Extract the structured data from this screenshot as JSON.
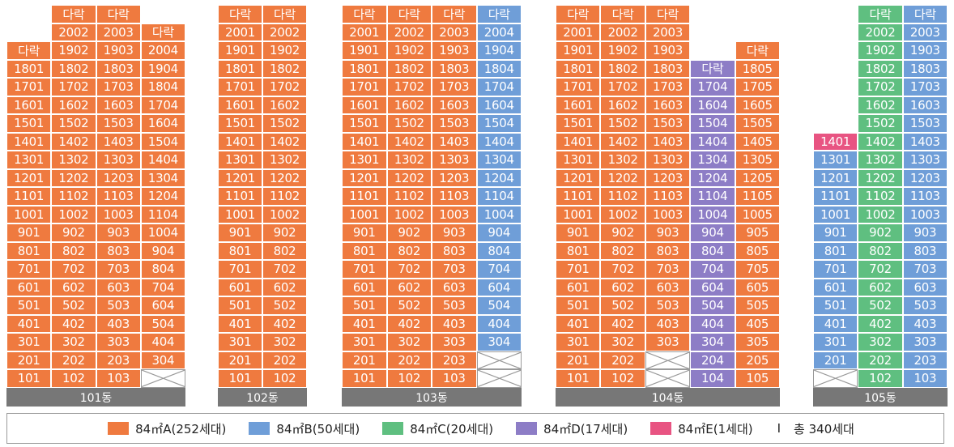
{
  "colors": {
    "A": "#ef7a3f",
    "B": "#6f9ed8",
    "C": "#5fbf80",
    "D": "#8d7dc6",
    "E": "#e85482"
  },
  "roof_label": "다락",
  "buildings": [
    {
      "name": "101동",
      "columns": [
        {
          "units": [
            "101",
            "201",
            "301",
            "401",
            "501",
            "601",
            "701",
            "801",
            "901",
            "1001",
            "1101",
            "1201",
            "1301",
            "1401",
            "1501",
            "1601",
            "1701",
            "1801",
            "다락"
          ],
          "types": [
            "A"
          ]
        },
        {
          "units": [
            "102",
            "202",
            "302",
            "402",
            "502",
            "602",
            "702",
            "802",
            "902",
            "1002",
            "1102",
            "1202",
            "1302",
            "1402",
            "1502",
            "1602",
            "1702",
            "1802",
            "1902",
            "2002",
            "다락"
          ],
          "types": [
            "A"
          ]
        },
        {
          "units": [
            "103",
            "203",
            "303",
            "403",
            "503",
            "603",
            "703",
            "803",
            "903",
            "1003",
            "1103",
            "1203",
            "1303",
            "1403",
            "1503",
            "1603",
            "1703",
            "1803",
            "1903",
            "2003",
            "다락"
          ],
          "types": [
            "A"
          ]
        },
        {
          "units": [
            "",
            "304",
            "404",
            "504",
            "604",
            "704",
            "804",
            "904",
            "1004",
            "1104",
            "1204",
            "1304",
            "1404",
            "1504",
            "1604",
            "1704",
            "1804",
            "1904",
            "2004",
            "다락"
          ],
          "types": [
            "A"
          ],
          "empty_bottom": 1
        }
      ]
    },
    {
      "name": "102동",
      "columns": [
        {
          "units": [
            "101",
            "201",
            "301",
            "401",
            "501",
            "601",
            "701",
            "801",
            "901",
            "1001",
            "1101",
            "1201",
            "1301",
            "1401",
            "1501",
            "1601",
            "1701",
            "1801",
            "1901",
            "2001",
            "다락"
          ],
          "types": [
            "A"
          ]
        },
        {
          "units": [
            "102",
            "202",
            "302",
            "402",
            "502",
            "602",
            "702",
            "802",
            "902",
            "1002",
            "1102",
            "1202",
            "1302",
            "1402",
            "1502",
            "1602",
            "1702",
            "1802",
            "1902",
            "2002",
            "다락"
          ],
          "types": [
            "A"
          ]
        }
      ]
    },
    {
      "name": "103동",
      "columns": [
        {
          "units": [
            "101",
            "201",
            "301",
            "401",
            "501",
            "601",
            "701",
            "801",
            "901",
            "1001",
            "1101",
            "1201",
            "1301",
            "1401",
            "1501",
            "1601",
            "1701",
            "1801",
            "1901",
            "2001",
            "다락"
          ],
          "types": [
            "A"
          ]
        },
        {
          "units": [
            "102",
            "202",
            "302",
            "402",
            "502",
            "602",
            "702",
            "802",
            "902",
            "1002",
            "1102",
            "1202",
            "1302",
            "1402",
            "1502",
            "1602",
            "1702",
            "1802",
            "1902",
            "2002",
            "다락"
          ],
          "types": [
            "A"
          ]
        },
        {
          "units": [
            "103",
            "203",
            "303",
            "403",
            "503",
            "603",
            "703",
            "803",
            "903",
            "1003",
            "1103",
            "1203",
            "1303",
            "1403",
            "1503",
            "1603",
            "1703",
            "1803",
            "1903",
            "2003",
            "다락"
          ],
          "types": [
            "A"
          ]
        },
        {
          "units": [
            "",
            "",
            "304",
            "404",
            "504",
            "604",
            "704",
            "804",
            "904",
            "1004",
            "1104",
            "1204",
            "1304",
            "1404",
            "1504",
            "1604",
            "1704",
            "1804",
            "1904",
            "2004",
            "다락"
          ],
          "types": [
            "B"
          ],
          "empty_bottom": 2
        }
      ]
    },
    {
      "name": "104동",
      "columns": [
        {
          "units": [
            "101",
            "201",
            "301",
            "401",
            "501",
            "601",
            "701",
            "801",
            "901",
            "1001",
            "1101",
            "1201",
            "1301",
            "1401",
            "1501",
            "1601",
            "1701",
            "1801",
            "1901",
            "2001",
            "다락"
          ],
          "types": [
            "A"
          ]
        },
        {
          "units": [
            "102",
            "202",
            "302",
            "402",
            "502",
            "602",
            "702",
            "802",
            "902",
            "1002",
            "1102",
            "1202",
            "1302",
            "1402",
            "1502",
            "1602",
            "1702",
            "1802",
            "1902",
            "2002",
            "다락"
          ],
          "types": [
            "A"
          ]
        },
        {
          "units": [
            "",
            "",
            "303",
            "403",
            "503",
            "603",
            "703",
            "803",
            "903",
            "1003",
            "1103",
            "1203",
            "1303",
            "1403",
            "1503",
            "1603",
            "1703",
            "1803",
            "1903",
            "2003",
            "다락"
          ],
          "types": [
            "A"
          ],
          "empty_bottom": 2
        },
        {
          "units": [
            "104",
            "204",
            "304",
            "404",
            "504",
            "604",
            "704",
            "804",
            "904",
            "1004",
            "1104",
            "1204",
            "1304",
            "1404",
            "1504",
            "1604",
            "1704",
            "다락"
          ],
          "types": [
            "D"
          ]
        },
        {
          "units": [
            "105",
            "205",
            "305",
            "405",
            "505",
            "605",
            "705",
            "805",
            "905",
            "1005",
            "1105",
            "1205",
            "1305",
            "1405",
            "1505",
            "1605",
            "1705",
            "1805",
            "다락"
          ],
          "types": [
            "A"
          ]
        }
      ]
    },
    {
      "name": "105동",
      "columns": [
        {
          "units": [
            "",
            "201",
            "301",
            "401",
            "501",
            "601",
            "701",
            "801",
            "901",
            "1001",
            "1101",
            "1201",
            "1301",
            "1401"
          ],
          "types": [
            "B"
          ],
          "empty_bottom": 1,
          "top_type": "E"
        },
        {
          "units": [
            "102",
            "202",
            "302",
            "402",
            "502",
            "602",
            "702",
            "802",
            "902",
            "1002",
            "1102",
            "1202",
            "1302",
            "1402",
            "1502",
            "1602",
            "1702",
            "1802",
            "1902",
            "2002",
            "다락"
          ],
          "types": [
            "C"
          ]
        },
        {
          "units": [
            "103",
            "203",
            "303",
            "403",
            "503",
            "603",
            "703",
            "803",
            "903",
            "1003",
            "1103",
            "1203",
            "1303",
            "1403",
            "1503",
            "1603",
            "1703",
            "1803",
            "1903",
            "2003",
            "다락"
          ],
          "types": [
            "B"
          ]
        }
      ]
    }
  ],
  "legend": {
    "items": [
      {
        "label": "84㎡A(252세대)",
        "type": "A"
      },
      {
        "label": "84㎡B(50세대)",
        "type": "B"
      },
      {
        "label": "84㎡C(20세대)",
        "type": "C"
      },
      {
        "label": "84㎡D(17세대)",
        "type": "D"
      },
      {
        "label": "84㎡E(1세대)",
        "type": "E"
      }
    ],
    "separator": "I",
    "total": "총 340세대"
  }
}
